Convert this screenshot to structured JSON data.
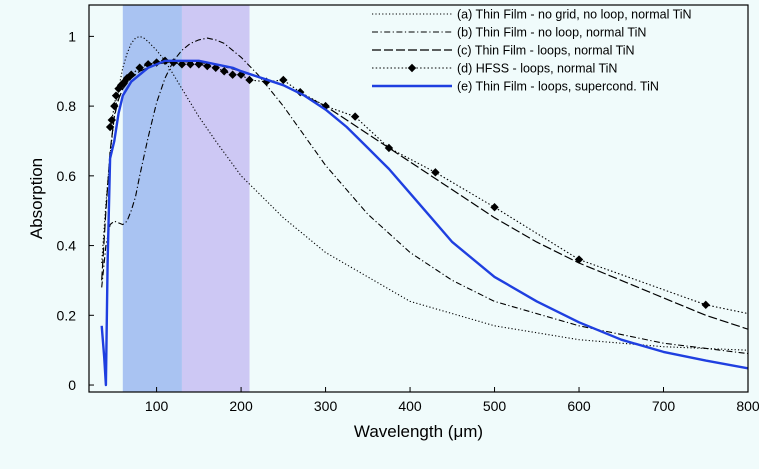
{
  "chart_data": {
    "type": "line",
    "title": "",
    "xlabel": "Wavelength (μm)",
    "ylabel": "Absorption",
    "xlim": [
      20,
      800
    ],
    "ylim": [
      -0.02,
      1.09
    ],
    "xticks": [
      100,
      200,
      300,
      400,
      500,
      600,
      700,
      800
    ],
    "yticks": [
      0,
      0.2,
      0.4,
      0.6,
      0.8,
      1
    ],
    "grid": false,
    "legend_position": "top-right",
    "bands": [
      {
        "x0": 60,
        "x1": 130,
        "color": "#a9c3f2"
      },
      {
        "x0": 130,
        "x1": 210,
        "color": "#cdc8f4"
      }
    ],
    "series": [
      {
        "name": "(a) Thin Film - no grid, no loop, normal TiN",
        "color": "#000000",
        "dash": "1.2,2.2",
        "width": 1.1,
        "x": [
          35,
          40,
          45,
          50,
          55,
          60,
          65,
          70,
          75,
          80,
          85,
          90,
          100,
          110,
          120,
          130,
          150,
          170,
          200,
          250,
          300,
          400,
          500,
          600,
          700,
          800
        ],
        "y": [
          0.35,
          0.52,
          0.66,
          0.77,
          0.85,
          0.91,
          0.95,
          0.98,
          0.995,
          1.0,
          0.995,
          0.985,
          0.96,
          0.93,
          0.89,
          0.85,
          0.77,
          0.7,
          0.6,
          0.48,
          0.38,
          0.24,
          0.17,
          0.13,
          0.11,
          0.1
        ]
      },
      {
        "name": "(b) Thin Film - no loop, normal TiN",
        "color": "#000000",
        "dash": "6,2.5,1.2,2.5",
        "width": 1.1,
        "x": [
          35,
          40,
          45,
          50,
          55,
          60,
          65,
          70,
          75,
          80,
          90,
          100,
          110,
          120,
          130,
          140,
          150,
          160,
          170,
          180,
          190,
          200,
          220,
          250,
          300,
          350,
          400,
          450,
          500,
          600,
          700,
          800
        ],
        "y": [
          0.28,
          0.4,
          0.46,
          0.47,
          0.465,
          0.46,
          0.47,
          0.5,
          0.54,
          0.6,
          0.71,
          0.81,
          0.88,
          0.93,
          0.96,
          0.98,
          0.99,
          0.995,
          0.99,
          0.98,
          0.96,
          0.94,
          0.89,
          0.8,
          0.63,
          0.49,
          0.38,
          0.3,
          0.24,
          0.17,
          0.12,
          0.09
        ]
      },
      {
        "name": "(c) Thin Film - loops,  normal TiN",
        "color": "#000000",
        "dash": "9,3",
        "width": 1.2,
        "x": [
          35,
          40,
          45,
          50,
          55,
          60,
          70,
          80,
          90,
          100,
          110,
          120,
          130,
          150,
          170,
          200,
          250,
          300,
          350,
          400,
          450,
          500,
          550,
          600,
          650,
          700,
          750,
          800
        ],
        "y": [
          0.3,
          0.5,
          0.67,
          0.77,
          0.82,
          0.85,
          0.88,
          0.9,
          0.91,
          0.92,
          0.925,
          0.928,
          0.928,
          0.925,
          0.92,
          0.9,
          0.86,
          0.8,
          0.72,
          0.64,
          0.56,
          0.48,
          0.41,
          0.35,
          0.3,
          0.25,
          0.2,
          0.16
        ]
      },
      {
        "name": "(d) HFSS - loops, normal TiN",
        "color": "#000000",
        "dash": "1.5,2.2",
        "width": 1.1,
        "marker": "diamond",
        "x": [
          45,
          47,
          50,
          52,
          55,
          58,
          62,
          65,
          70,
          80,
          90,
          100,
          110,
          120,
          130,
          140,
          150,
          160,
          170,
          180,
          190,
          200,
          210,
          230,
          250,
          270,
          300,
          335,
          375,
          430,
          500,
          600,
          750,
          800
        ],
        "y": [
          0.74,
          0.76,
          0.8,
          0.83,
          0.85,
          0.86,
          0.87,
          0.88,
          0.89,
          0.91,
          0.92,
          0.925,
          0.93,
          0.925,
          0.92,
          0.92,
          0.92,
          0.915,
          0.91,
          0.9,
          0.89,
          0.89,
          0.875,
          0.87,
          0.875,
          0.84,
          0.8,
          0.77,
          0.68,
          0.61,
          0.51,
          0.36,
          0.23,
          0.205
        ]
      },
      {
        "name": "(e) Thin Film - loops, supercond. TiN",
        "color": "#1f3fe0",
        "dash": "",
        "width": 2.4,
        "x": [
          35,
          38,
          40,
          42,
          45,
          50,
          55,
          60,
          70,
          80,
          90,
          100,
          110,
          120,
          130,
          140,
          150,
          160,
          170,
          180,
          190,
          200,
          225,
          250,
          275,
          300,
          325,
          350,
          375,
          400,
          425,
          450,
          500,
          550,
          600,
          650,
          700,
          750,
          800
        ],
        "y": [
          0.17,
          0.08,
          0.0,
          0.35,
          0.65,
          0.7,
          0.78,
          0.83,
          0.87,
          0.89,
          0.91,
          0.92,
          0.93,
          0.93,
          0.93,
          0.93,
          0.93,
          0.925,
          0.92,
          0.915,
          0.91,
          0.9,
          0.88,
          0.86,
          0.83,
          0.79,
          0.74,
          0.68,
          0.62,
          0.55,
          0.48,
          0.41,
          0.31,
          0.24,
          0.18,
          0.13,
          0.095,
          0.07,
          0.048
        ]
      }
    ]
  }
}
